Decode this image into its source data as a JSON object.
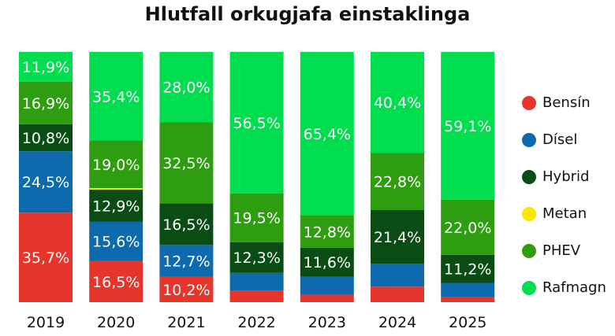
{
  "chart_data": {
    "type": "bar",
    "stacked": true,
    "normalized_percent": true,
    "title": "Hlutfall orkugjafa einstaklinga",
    "categories": [
      "2019",
      "2020",
      "2021",
      "2022",
      "2023",
      "2024",
      "2025"
    ],
    "legend_position": "right",
    "grid": false,
    "series": [
      {
        "name": "Bensín",
        "color": "#e8352b",
        "values": [
          35.7,
          16.5,
          10.2,
          4.7,
          3.0,
          6.2,
          2.0
        ],
        "labels": [
          "35,7%",
          "16,5%",
          "10,2%",
          "",
          "",
          "",
          ""
        ]
      },
      {
        "name": "Dísel",
        "color": "#0d6aad",
        "values": [
          24.5,
          15.6,
          12.7,
          7.0,
          7.2,
          9.2,
          5.7
        ],
        "labels": [
          "24,5%",
          "15,6%",
          "12,7%",
          "",
          "",
          "",
          ""
        ]
      },
      {
        "name": "Hybrid",
        "color": "#0a4d14",
        "values": [
          10.8,
          12.9,
          16.5,
          12.3,
          11.6,
          21.4,
          11.2
        ],
        "labels": [
          "10,8%",
          "12,9%",
          "16,5%",
          "12,3%",
          "11,6%",
          "21,4%",
          "11,2%"
        ]
      },
      {
        "name": "Metan",
        "color": "#ffe600",
        "values": [
          0,
          0.6,
          0,
          0,
          0,
          0,
          0
        ],
        "labels": [
          "",
          "",
          "",
          "",
          "",
          "",
          ""
        ]
      },
      {
        "name": "PHEV",
        "color": "#2e9e10",
        "values": [
          16.9,
          19.0,
          32.5,
          19.5,
          12.8,
          22.8,
          22.0
        ],
        "labels": [
          "16,9%",
          "19,0%",
          "32,5%",
          "19,5%",
          "12,8%",
          "22,8%",
          "22,0%"
        ]
      },
      {
        "name": "Rafmagn",
        "color": "#00dd4e",
        "values": [
          11.9,
          35.4,
          28.0,
          56.5,
          65.4,
          40.4,
          59.1
        ],
        "labels": [
          "11,9%",
          "35,4%",
          "28,0%",
          "56,5%",
          "65,4%",
          "40,4%",
          "59,1%"
        ]
      }
    ]
  }
}
